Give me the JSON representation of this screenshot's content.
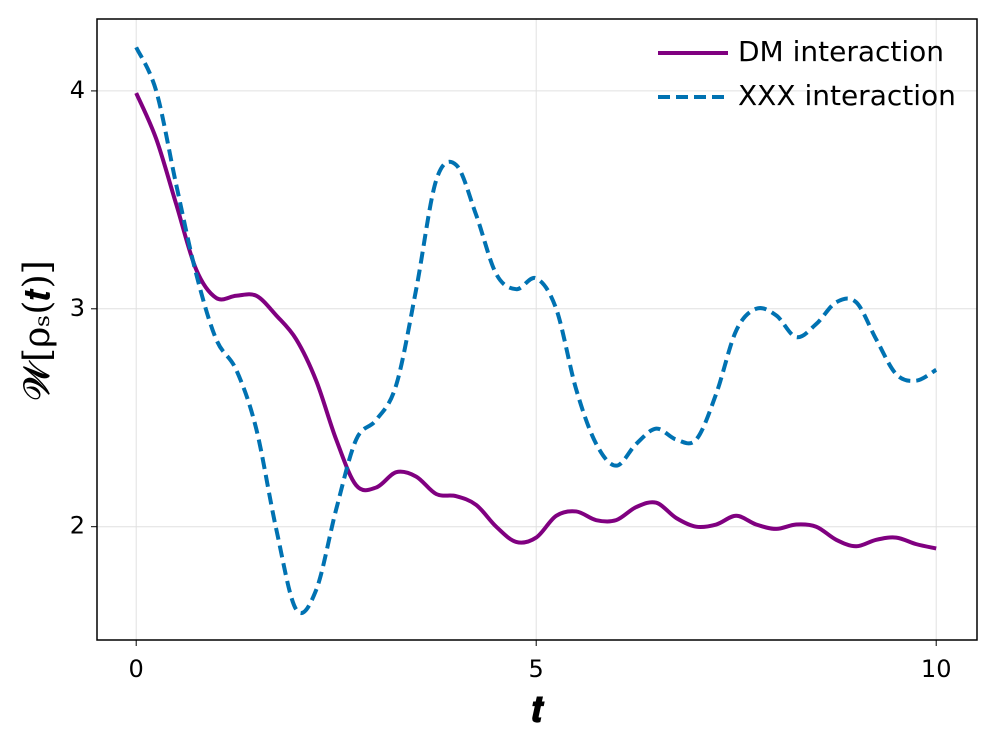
{
  "chart_data": {
    "type": "line",
    "xlabel": "𝒕",
    "ylabel": "𝓦[ρₛ(𝒕)]",
    "x": [
      0,
      0.25,
      0.5,
      0.75,
      1,
      1.25,
      1.5,
      1.75,
      2,
      2.25,
      2.5,
      2.75,
      3,
      3.25,
      3.5,
      3.75,
      4,
      4.25,
      4.5,
      4.75,
      5,
      5.25,
      5.5,
      5.75,
      6,
      6.25,
      6.5,
      6.75,
      7,
      7.25,
      7.5,
      7.75,
      8,
      8.25,
      8.5,
      8.75,
      9,
      9.25,
      9.5,
      9.75,
      10
    ],
    "series": [
      {
        "name": "DM interaction",
        "color": "#800080",
        "dash": false,
        "values": [
          3.99,
          3.78,
          3.48,
          3.18,
          3.05,
          3.06,
          3.06,
          2.97,
          2.86,
          2.67,
          2.4,
          2.19,
          2.18,
          2.25,
          2.23,
          2.15,
          2.14,
          2.1,
          2.0,
          1.93,
          1.95,
          2.05,
          2.07,
          2.03,
          2.03,
          2.09,
          2.11,
          2.04,
          2.0,
          2.01,
          2.05,
          2.01,
          1.99,
          2.01,
          2.0,
          1.94,
          1.91,
          1.94,
          1.95,
          1.92,
          1.9
        ]
      },
      {
        "name": "XXX interaction",
        "color": "#0072b2",
        "dash": true,
        "values": [
          4.2,
          4.0,
          3.57,
          3.16,
          2.86,
          2.72,
          2.45,
          1.99,
          1.62,
          1.71,
          2.08,
          2.4,
          2.49,
          2.65,
          3.09,
          3.59,
          3.66,
          3.43,
          3.16,
          3.09,
          3.14,
          3.0,
          2.63,
          2.38,
          2.28,
          2.38,
          2.45,
          2.4,
          2.4,
          2.61,
          2.9,
          3.0,
          2.97,
          2.87,
          2.93,
          3.03,
          3.03,
          2.86,
          2.7,
          2.67,
          2.72
        ]
      }
    ],
    "xlim": [
      -0.49,
      10.51
    ],
    "ylim": [
      1.48,
      4.33
    ],
    "xticks": [
      0,
      5,
      10
    ],
    "yticks": [
      2,
      3,
      4
    ],
    "grid": true,
    "legend": "upper right"
  }
}
